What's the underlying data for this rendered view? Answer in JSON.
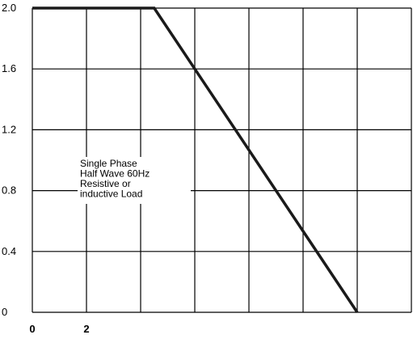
{
  "chart_data": {
    "type": "line",
    "title": "",
    "xlabel": "",
    "ylabel": "",
    "x_tick_labels": [
      "0",
      "2"
    ],
    "y_tick_labels": [
      "2.0",
      "1.6",
      "1.2",
      "0.8",
      "0.4",
      "0"
    ],
    "ylim": [
      0,
      2.0
    ],
    "grid": true,
    "series": [
      {
        "points": [
          {
            "x": 0,
            "y": 2.0
          },
          {
            "x": 4.5,
            "y": 2.0
          },
          {
            "x": 12,
            "y": 0
          }
        ]
      }
    ],
    "annotation": {
      "lines": [
        "Single Phase",
        "Half Wave 60Hz",
        "Resistive or",
        "inductive Load"
      ]
    },
    "line_color": "#1a1a1a"
  }
}
